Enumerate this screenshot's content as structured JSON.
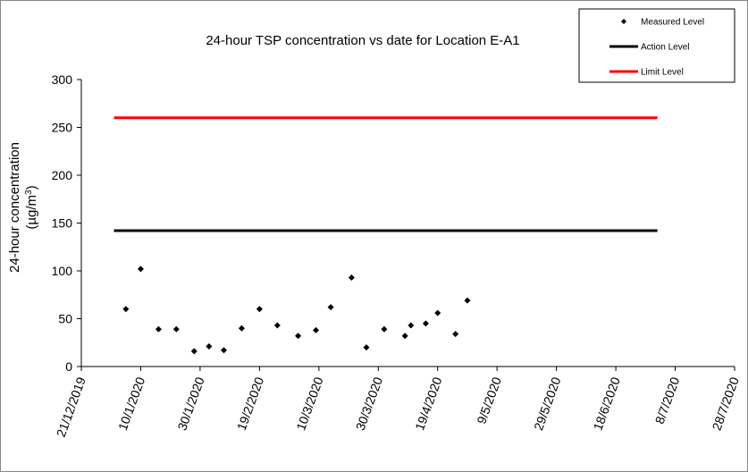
{
  "chart_data": {
    "type": "scatter",
    "title": "24-hour TSP concentration vs date for Location E-A1",
    "ylabel_line1": "24-hour concentration",
    "ylabel_line2_prefix": "(µg/m",
    "ylabel_line2_sup": "3",
    "ylabel_line2_suffix": ")",
    "ylim": [
      0,
      300
    ],
    "y_ticks": [
      0,
      50,
      100,
      150,
      200,
      250,
      300
    ],
    "x_range": [
      "2019-12-21",
      "2020-07-28"
    ],
    "x_tick_dates": [
      "2019-12-21",
      "2020-01-10",
      "2020-01-30",
      "2020-02-19",
      "2020-03-10",
      "2020-03-30",
      "2020-04-19",
      "2020-05-09",
      "2020-05-29",
      "2020-06-18",
      "2020-07-08",
      "2020-07-28"
    ],
    "x_tick_labels": [
      "21/12/2019",
      "10/1/2020",
      "30/1/2020",
      "19/2/2020",
      "10/3/2020",
      "30/3/2020",
      "19/4/2020",
      "9/5/2020",
      "29/5/2020",
      "18/6/2020",
      "8/7/2020",
      "28/7/2020"
    ],
    "grid": false,
    "legend_position": "top-right",
    "series": [
      {
        "name": "Measured Level",
        "kind": "marker",
        "color": "#000000",
        "points": [
          {
            "x": "2020-01-05",
            "y": 60
          },
          {
            "x": "2020-01-10",
            "y": 102
          },
          {
            "x": "2020-01-16",
            "y": 39
          },
          {
            "x": "2020-01-22",
            "y": 39
          },
          {
            "x": "2020-01-28",
            "y": 16
          },
          {
            "x": "2020-02-02",
            "y": 21
          },
          {
            "x": "2020-02-07",
            "y": 17
          },
          {
            "x": "2020-02-13",
            "y": 40
          },
          {
            "x": "2020-02-19",
            "y": 60
          },
          {
            "x": "2020-02-25",
            "y": 43
          },
          {
            "x": "2020-03-03",
            "y": 32
          },
          {
            "x": "2020-03-09",
            "y": 38
          },
          {
            "x": "2020-03-14",
            "y": 62
          },
          {
            "x": "2020-03-21",
            "y": 93
          },
          {
            "x": "2020-03-26",
            "y": 20
          },
          {
            "x": "2020-04-01",
            "y": 39
          },
          {
            "x": "2020-04-08",
            "y": 32
          },
          {
            "x": "2020-04-10",
            "y": 43
          },
          {
            "x": "2020-04-15",
            "y": 45
          },
          {
            "x": "2020-04-19",
            "y": 56
          },
          {
            "x": "2020-04-25",
            "y": 34
          },
          {
            "x": "2020-04-29",
            "y": 69
          }
        ]
      },
      {
        "name": "Action Level",
        "kind": "line",
        "color": "#000000",
        "points": [
          {
            "x": "2020-01-01",
            "y": 142
          },
          {
            "x": "2020-07-02",
            "y": 142
          }
        ]
      },
      {
        "name": "Limit Level",
        "kind": "line",
        "color": "#ff0000",
        "points": [
          {
            "x": "2020-01-01",
            "y": 260
          },
          {
            "x": "2020-07-02",
            "y": 260
          }
        ]
      }
    ]
  }
}
